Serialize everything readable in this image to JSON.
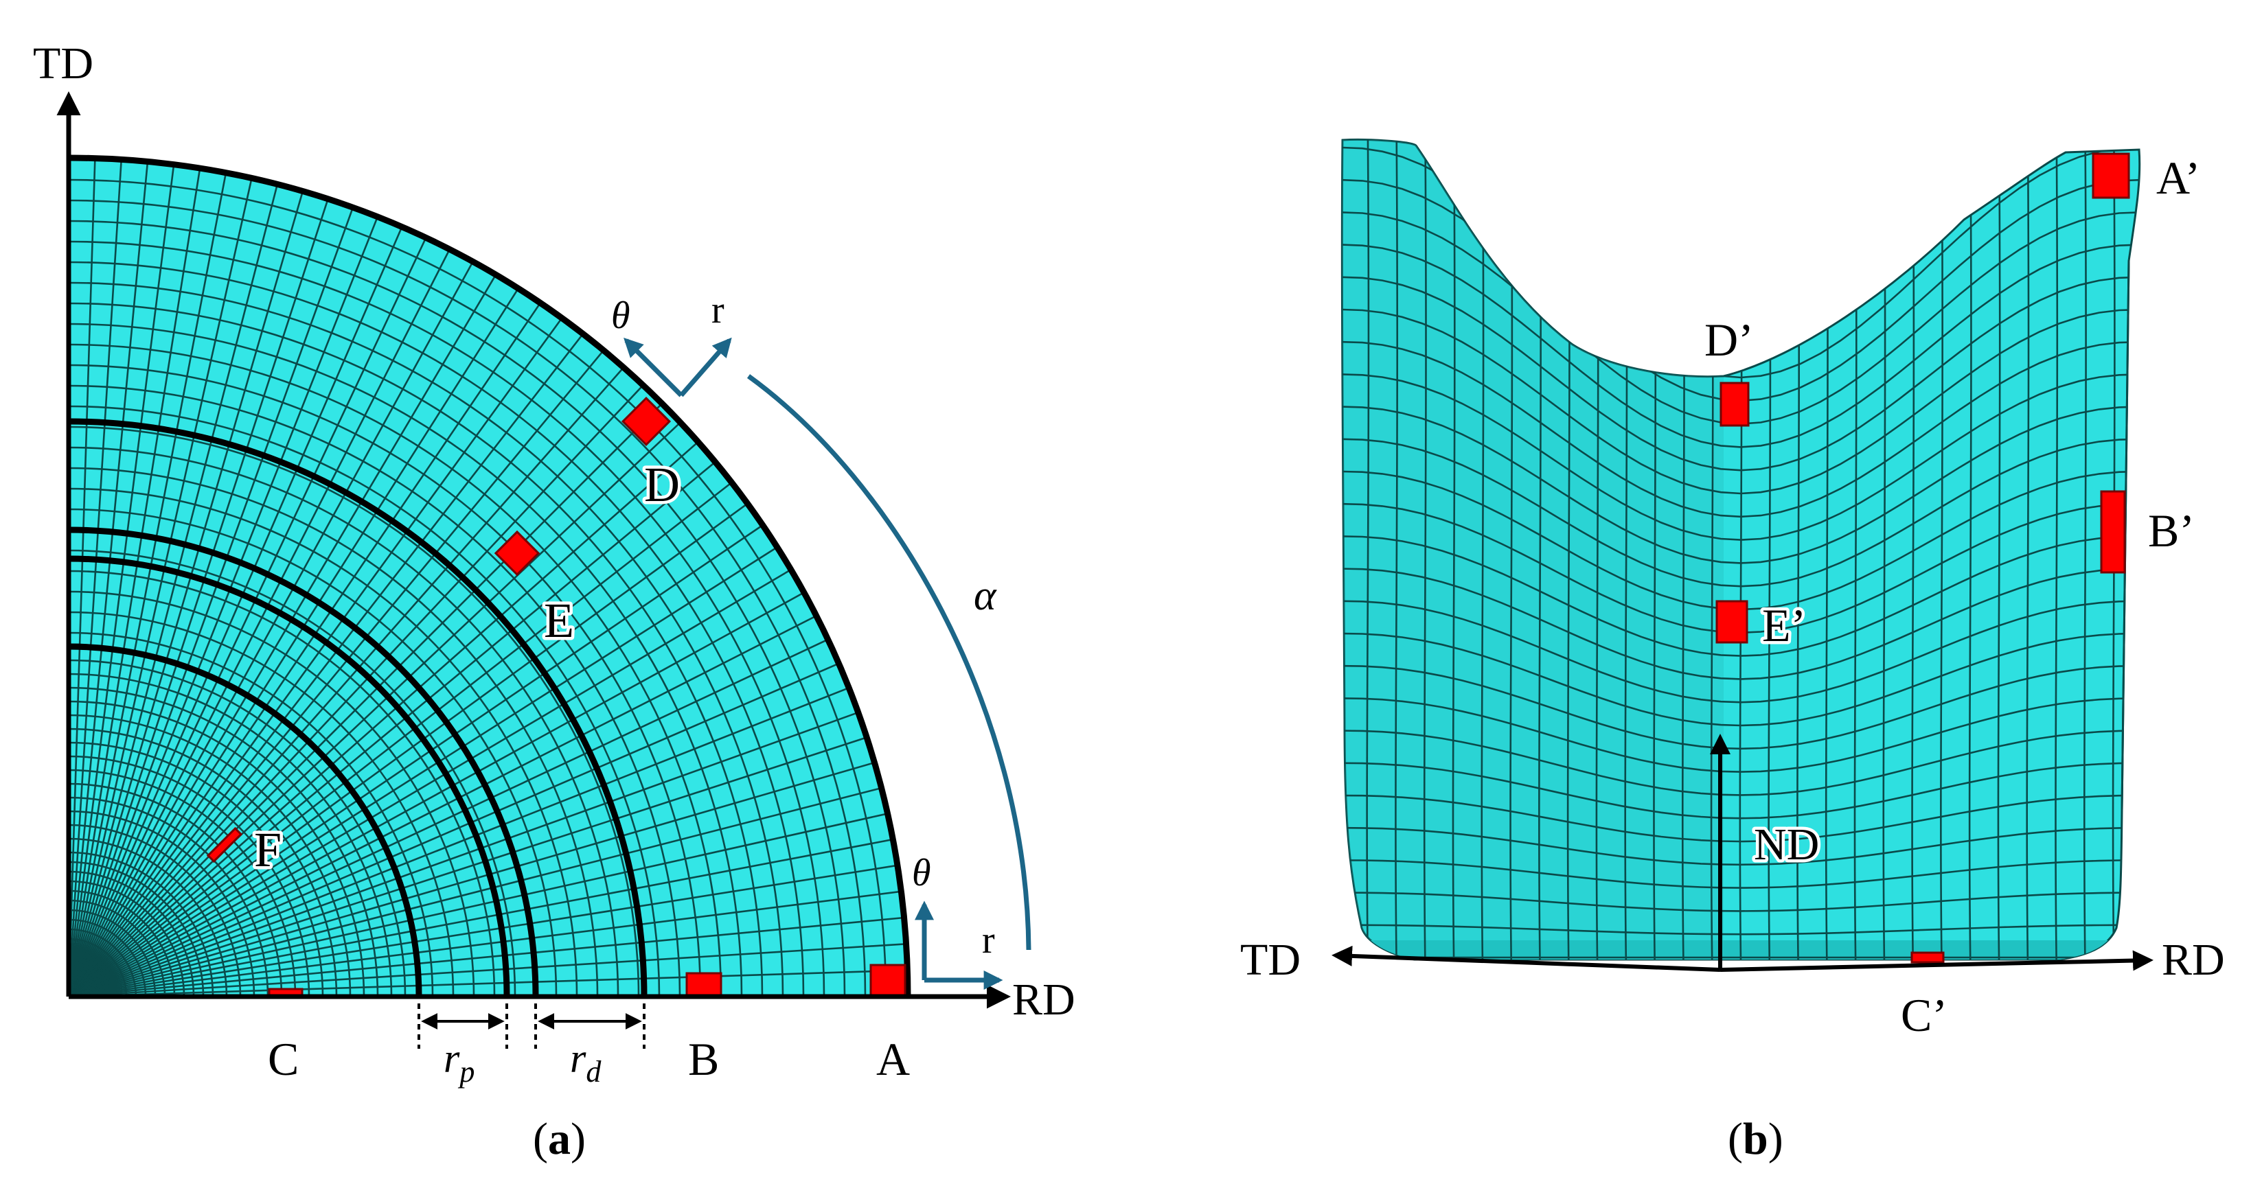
{
  "panel_a": {
    "axis_x": "RD",
    "axis_y": "TD",
    "points": [
      "A",
      "B",
      "C",
      "D",
      "E",
      "F"
    ],
    "local_theta": "θ",
    "local_r": "r",
    "angle": "α",
    "r_p": "r",
    "r_p_sub": "p",
    "r_d": "r",
    "r_d_sub": "d",
    "caption_letter": "a"
  },
  "panel_b": {
    "axis_left": "TD",
    "axis_right": "RD",
    "axis_up": "ND",
    "points": [
      "A’",
      "B’",
      "C’",
      "D’",
      "E’"
    ],
    "caption_letter": "b"
  },
  "colors": {
    "mesh_fill": "#33e6e6",
    "mesh_line": "#0a4a4a",
    "marker": "#ff0000",
    "annotation_blue": "#1c6688",
    "axis": "#000000"
  }
}
